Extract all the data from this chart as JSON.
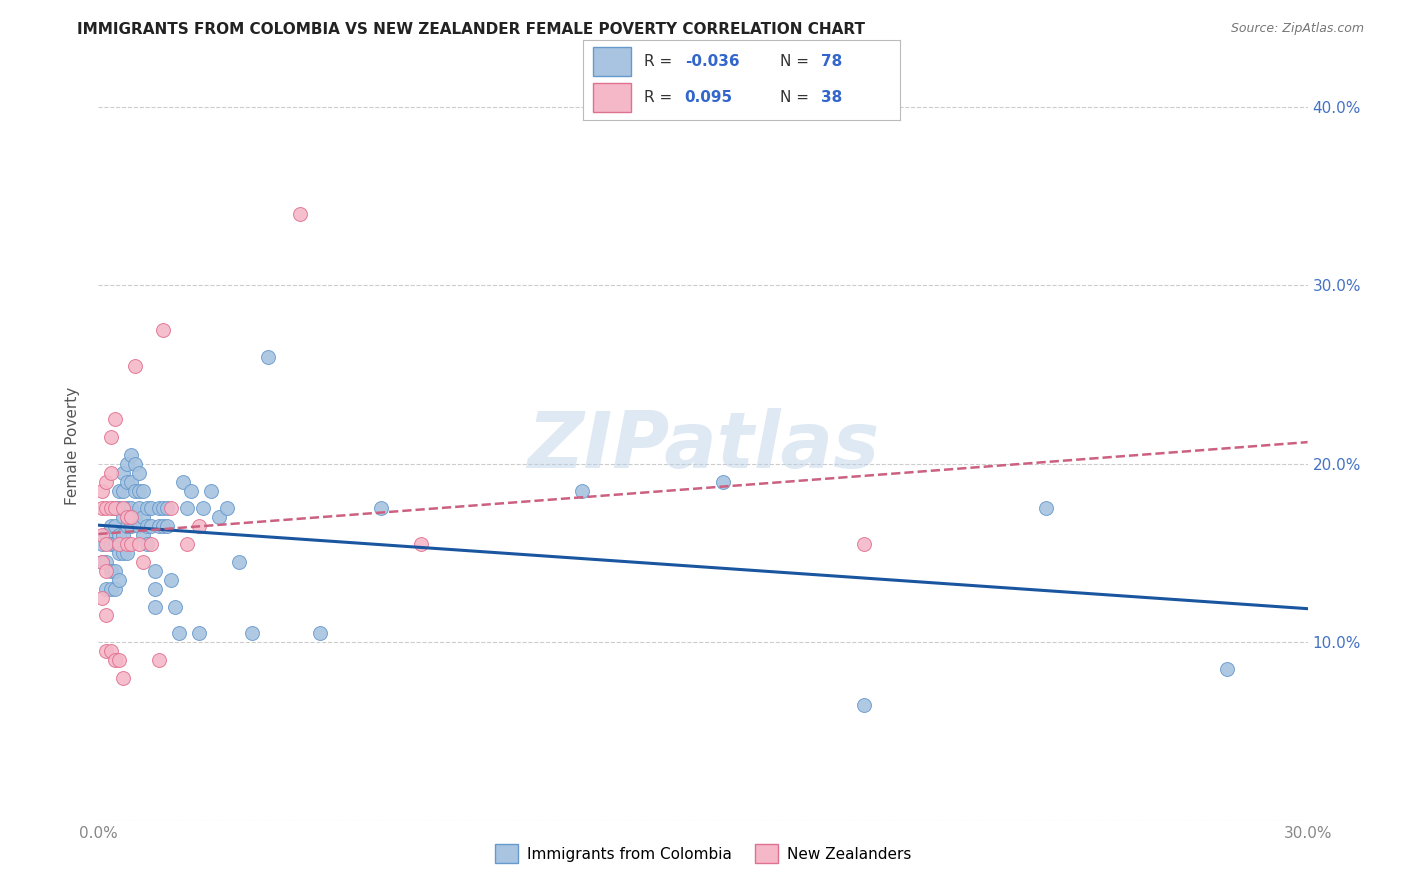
{
  "title": "IMMIGRANTS FROM COLOMBIA VS NEW ZEALANDER FEMALE POVERTY CORRELATION CHART",
  "source": "Source: ZipAtlas.com",
  "ylabel": "Female Poverty",
  "watermark": "ZIPatlas",
  "series": [
    {
      "name": "Immigrants from Colombia",
      "color": "#a8c4e0",
      "edge_color": "#6699cc",
      "R": -0.036,
      "N": 78,
      "trend_color": "#1a56a0",
      "trend_style": "solid",
      "x": [
        0.001,
        0.001,
        0.002,
        0.002,
        0.002,
        0.003,
        0.003,
        0.003,
        0.003,
        0.004,
        0.004,
        0.004,
        0.004,
        0.004,
        0.005,
        0.005,
        0.005,
        0.005,
        0.005,
        0.006,
        0.006,
        0.006,
        0.006,
        0.006,
        0.007,
        0.007,
        0.007,
        0.007,
        0.007,
        0.008,
        0.008,
        0.008,
        0.008,
        0.009,
        0.009,
        0.009,
        0.01,
        0.01,
        0.01,
        0.01,
        0.011,
        0.011,
        0.011,
        0.012,
        0.012,
        0.012,
        0.013,
        0.013,
        0.014,
        0.014,
        0.014,
        0.015,
        0.015,
        0.016,
        0.016,
        0.017,
        0.017,
        0.018,
        0.019,
        0.02,
        0.021,
        0.022,
        0.023,
        0.025,
        0.026,
        0.028,
        0.03,
        0.032,
        0.035,
        0.038,
        0.042,
        0.055,
        0.07,
        0.12,
        0.155,
        0.19,
        0.235,
        0.28
      ],
      "y": [
        0.155,
        0.145,
        0.16,
        0.145,
        0.13,
        0.165,
        0.155,
        0.14,
        0.13,
        0.175,
        0.165,
        0.155,
        0.14,
        0.13,
        0.185,
        0.175,
        0.16,
        0.15,
        0.135,
        0.195,
        0.185,
        0.17,
        0.16,
        0.15,
        0.2,
        0.19,
        0.175,
        0.165,
        0.15,
        0.205,
        0.19,
        0.175,
        0.165,
        0.2,
        0.185,
        0.17,
        0.195,
        0.185,
        0.175,
        0.165,
        0.185,
        0.17,
        0.16,
        0.175,
        0.165,
        0.155,
        0.175,
        0.165,
        0.14,
        0.13,
        0.12,
        0.175,
        0.165,
        0.175,
        0.165,
        0.175,
        0.165,
        0.135,
        0.12,
        0.105,
        0.19,
        0.175,
        0.185,
        0.105,
        0.175,
        0.185,
        0.17,
        0.175,
        0.145,
        0.105,
        0.26,
        0.105,
        0.175,
        0.185,
        0.19,
        0.065,
        0.175,
        0.085
      ]
    },
    {
      "name": "New Zealanders",
      "color": "#f4b8c8",
      "edge_color": "#e07090",
      "R": 0.095,
      "N": 38,
      "trend_color": "#cc6080",
      "trend_style": "dashed",
      "x": [
        0.001,
        0.001,
        0.001,
        0.001,
        0.001,
        0.002,
        0.002,
        0.002,
        0.002,
        0.002,
        0.002,
        0.003,
        0.003,
        0.003,
        0.003,
        0.004,
        0.004,
        0.004,
        0.005,
        0.005,
        0.006,
        0.006,
        0.007,
        0.007,
        0.008,
        0.008,
        0.009,
        0.01,
        0.011,
        0.013,
        0.015,
        0.016,
        0.018,
        0.022,
        0.025,
        0.05,
        0.08,
        0.19
      ],
      "y": [
        0.185,
        0.175,
        0.16,
        0.145,
        0.125,
        0.19,
        0.175,
        0.155,
        0.14,
        0.115,
        0.095,
        0.215,
        0.195,
        0.175,
        0.095,
        0.225,
        0.175,
        0.09,
        0.155,
        0.09,
        0.175,
        0.08,
        0.17,
        0.155,
        0.17,
        0.155,
        0.255,
        0.155,
        0.145,
        0.155,
        0.09,
        0.275,
        0.175,
        0.155,
        0.165,
        0.34,
        0.155,
        0.155
      ]
    }
  ],
  "xlim": [
    0,
    0.3
  ],
  "ylim": [
    0,
    0.42
  ],
  "yticks": [
    0.0,
    0.1,
    0.2,
    0.3,
    0.4
  ],
  "ytick_labels_right": [
    "",
    "10.0%",
    "20.0%",
    "30.0%",
    "40.0%"
  ],
  "xticks": [
    0.0,
    0.05,
    0.1,
    0.15,
    0.2,
    0.25,
    0.3
  ],
  "xtick_labels": [
    "0.0%",
    "",
    "",
    "",
    "",
    "",
    "30.0%"
  ],
  "grid_color": "#cccccc",
  "bg_color": "#ffffff",
  "legend_R_color": "#3366cc",
  "legend_N_color": "#3366cc",
  "tick_color": "#888888"
}
